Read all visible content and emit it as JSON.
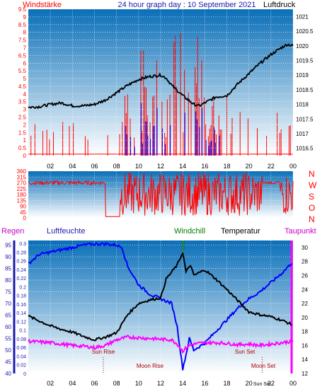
{
  "header": {
    "left_label": "Windstärke",
    "title": "24 hour graph day : 10 September 2021",
    "right_label": "Luftdruck"
  },
  "wind_dir_labels": [
    "N",
    "W",
    "S",
    "O",
    "N"
  ],
  "bottom_header": {
    "regen": "Regen",
    "luftfeuchte": "Luftfeuchte",
    "windchill": "Windchill",
    "temperatur": "Temperatur",
    "taupunkt": "Taupunkt"
  },
  "annotations": {
    "sun_rise": "Sun Rise",
    "moon_rise": "Moon Rise",
    "sun_set": "Sun Set",
    "moon_set": "Moon Set",
    "sun_set_axis": "Sun Set"
  },
  "colors": {
    "wind": "#ff0000",
    "gust": "#0000ff",
    "pressure": "#000000",
    "direction": "#ff0000",
    "humidity": "#0000ff",
    "temperature": "#000000",
    "dewpoint": "#ff00ff",
    "windchill": "#008000",
    "plot_top": "#0a6fb8",
    "plot_bottom": "#ffffff"
  },
  "chart_data": [
    {
      "id": "wind_pressure",
      "type": "line",
      "x_ticks": [
        "02",
        "04",
        "06",
        "08",
        "10",
        "12",
        "14",
        "16",
        "18",
        "20",
        "22",
        "00"
      ],
      "y_left_label": "Windstärke",
      "y_left_ticks": [
        "0",
        "0.5",
        "1",
        "1.5",
        "2",
        "2.5",
        "3",
        "3.5",
        "4",
        "4.5",
        "5",
        "5.5",
        "6",
        "6.5",
        "7",
        "7.5",
        "8",
        "8.5",
        "9",
        "9.5"
      ],
      "ylim_left": [
        0,
        9.5
      ],
      "y_right_label": "Luftdruck",
      "y_right_ticks": [
        "1016.5",
        "1017",
        "1017.5",
        "1018",
        "1018.5",
        "1019",
        "1019.5",
        "1020",
        "1020.5",
        "1021"
      ],
      "ylim_right": [
        1016.25,
        1021.25
      ],
      "xlim": [
        0,
        24
      ],
      "series": [
        {
          "name": "Luftdruck",
          "x": [
            0,
            1,
            2,
            3,
            4,
            5,
            6,
            7,
            8,
            9,
            10,
            11,
            12,
            12.5,
            13,
            14,
            15,
            15.5,
            16,
            17,
            18,
            19,
            20,
            21,
            22,
            23,
            23.5,
            24
          ],
          "values": [
            1017.9,
            1017.92,
            1018.0,
            1018.05,
            1017.95,
            1017.95,
            1018.0,
            1018.15,
            1018.4,
            1018.65,
            1018.85,
            1018.95,
            1019.0,
            1018.9,
            1018.65,
            1018.3,
            1018.0,
            1017.95,
            1018.05,
            1018.25,
            1018.3,
            1018.7,
            1019.05,
            1019.4,
            1019.7,
            1019.95,
            1020.05,
            1020.0
          ]
        }
      ]
    },
    {
      "id": "wind_direction",
      "type": "line",
      "x_ticks": [
        "02",
        "04",
        "06",
        "08",
        "10",
        "12",
        "14",
        "16",
        "18",
        "20",
        "22",
        "00"
      ],
      "y_ticks": [
        "0",
        "45",
        "90",
        "135",
        "180",
        "225",
        "270",
        "315",
        "360"
      ],
      "ylim": [
        0,
        360
      ],
      "xlim": [
        0,
        24
      ]
    },
    {
      "id": "temp_humidity",
      "type": "line",
      "x_ticks": [
        "02",
        "04",
        "06",
        "08",
        "10",
        "12",
        "14",
        "16",
        "18",
        "20",
        "Sun Set",
        "22",
        "00"
      ],
      "y_rain_ticks": [
        "0",
        "0.02",
        "0.04",
        "0.06",
        "0.08",
        "0.1",
        "0.12",
        "0.14",
        "0.16",
        "0.18",
        "0.2",
        "0.22",
        "0.24",
        "0.26",
        "0.28",
        "0.3"
      ],
      "y_humidity_ticks": [
        "40",
        "45",
        "50",
        "55",
        "60",
        "65",
        "70",
        "75",
        "80",
        "85",
        "90",
        "95"
      ],
      "y_temp_ticks": [
        "12",
        "14",
        "16",
        "18",
        "20",
        "22",
        "24",
        "26",
        "28",
        "30"
      ],
      "ylim_humidity": [
        40,
        97
      ],
      "ylim_temp": [
        12,
        31
      ],
      "xlim": [
        0,
        24
      ],
      "series": [
        {
          "name": "Luftfeuchte",
          "x": [
            0,
            0.5,
            1,
            2,
            3,
            4,
            5,
            6,
            7,
            8,
            8.5,
            9,
            9.5,
            10,
            11,
            12,
            13,
            13.5,
            14,
            14.3,
            14.6,
            15,
            16,
            17,
            18,
            19,
            20,
            21,
            22,
            23,
            24
          ],
          "values": [
            87,
            89,
            91,
            92,
            93,
            94,
            95,
            95.5,
            95.5,
            95,
            94,
            86,
            82,
            78,
            74,
            72,
            70,
            60,
            42,
            48,
            55,
            50,
            53,
            58,
            63,
            68,
            72,
            75,
            79,
            83,
            88
          ]
        },
        {
          "name": "Temperatur",
          "x": [
            0,
            1,
            2,
            3,
            4,
            5,
            6,
            7,
            8,
            9,
            10,
            11,
            12,
            12.5,
            13,
            13.5,
            14,
            14.3,
            14.7,
            15,
            16,
            17,
            18,
            19,
            20,
            21,
            22,
            23,
            24
          ],
          "values": [
            20.2,
            19.5,
            18.8,
            18.3,
            17.9,
            17.3,
            16.8,
            17.2,
            17.8,
            20.4,
            22.0,
            22.5,
            22.8,
            25.5,
            26.5,
            27.5,
            29.3,
            26.5,
            27.5,
            26.0,
            26.8,
            25.5,
            24.0,
            22.4,
            20.8,
            20.4,
            20.1,
            19.6,
            18.9
          ]
        },
        {
          "name": "Taupunkt",
          "x": [
            0,
            1,
            2,
            3,
            4,
            5,
            6,
            7,
            8,
            9,
            10,
            11,
            12,
            13,
            13.5,
            14,
            14.5,
            15,
            16,
            17,
            18,
            19,
            20,
            21,
            22,
            23,
            24
          ],
          "values": [
            16.6,
            16.5,
            16.4,
            16.2,
            16.0,
            15.9,
            15.7,
            16.0,
            16.8,
            17.2,
            17.1,
            17.0,
            16.9,
            16.8,
            16.2,
            15.2,
            15.9,
            16.2,
            16.4,
            16.4,
            16.3,
            16.1,
            16.2,
            16.0,
            16.2,
            16.4,
            16.6
          ]
        }
      ]
    }
  ]
}
